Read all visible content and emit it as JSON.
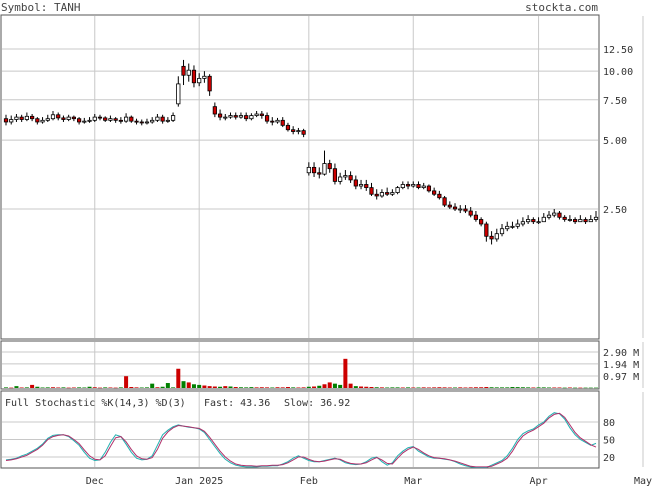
{
  "header": {
    "symbol_label": "Symbol: TANH",
    "site_label": "stockta.com"
  },
  "colors": {
    "up_candle": "#ffffff",
    "down_candle": "#cc0000",
    "volume_up": "#008000",
    "volume_down": "#cc0000",
    "fast_line": "#20b0b0",
    "slow_line": "#b0306a",
    "grid": "#c8c8c8"
  },
  "stochastic": {
    "title": "Full Stochastic %K(14,3) %D(3)",
    "fast_label": "Fast: 43.36",
    "slow_label": "Slow: 36.92"
  },
  "chart_data": [
    {
      "type": "candlestick",
      "title": "",
      "y_scale": "log",
      "y_ticks": [
        "12.50",
        "10.00",
        "7.50",
        "5.00",
        "2.50"
      ],
      "y_tick_values": [
        12.5,
        10.0,
        7.5,
        5.0,
        2.5
      ],
      "x_ticks": [
        "Dec",
        "Jan 2025",
        "Feb",
        "Mar",
        "Apr",
        "May"
      ],
      "x_tick_index": [
        17,
        37,
        58,
        78,
        102,
        122
      ],
      "grid": true,
      "close": [
        6.0,
        6.15,
        6.3,
        6.15,
        6.35,
        6.2,
        6.0,
        6.1,
        6.2,
        6.45,
        6.25,
        6.15,
        6.3,
        6.2,
        6.0,
        6.05,
        6.1,
        6.3,
        6.25,
        6.1,
        6.2,
        6.1,
        6.05,
        6.3,
        6.05,
        6.0,
        5.95,
        6.0,
        6.1,
        6.3,
        6.05,
        6.1,
        6.4,
        8.8,
        9.6,
        10.1,
        8.9,
        9.3,
        9.5,
        8.2,
        6.5,
        6.3,
        6.3,
        6.4,
        6.3,
        6.4,
        6.2,
        6.4,
        6.5,
        6.4,
        6.05,
        6.0,
        6.1,
        5.8,
        5.55,
        5.45,
        5.5,
        5.3,
        3.8,
        3.6,
        3.55,
        3.95,
        3.75,
        3.3,
        3.45,
        3.5,
        3.35,
        3.15,
        3.2,
        3.1,
        2.9,
        2.85,
        2.95,
        2.9,
        2.95,
        3.1,
        3.2,
        3.15,
        3.2,
        3.1,
        3.15,
        3.0,
        2.9,
        2.8,
        2.6,
        2.55,
        2.5,
        2.5,
        2.45,
        2.35,
        2.25,
        2.15,
        1.9,
        1.85,
        1.95,
        2.05,
        2.1,
        2.1,
        2.15,
        2.2,
        2.25,
        2.2,
        2.2,
        2.3,
        2.35,
        2.4,
        2.3,
        2.25,
        2.25,
        2.2,
        2.25,
        2.2,
        2.25,
        2.3
      ],
      "open": [
        6.2,
        6.0,
        6.15,
        6.3,
        6.15,
        6.35,
        6.2,
        6.0,
        6.1,
        6.2,
        6.45,
        6.25,
        6.15,
        6.3,
        6.2,
        6.0,
        6.05,
        6.1,
        6.3,
        6.25,
        6.1,
        6.2,
        6.1,
        6.05,
        6.3,
        6.05,
        6.0,
        5.95,
        6.0,
        6.1,
        6.3,
        6.05,
        6.1,
        7.2,
        10.5,
        9.6,
        10.1,
        8.9,
        9.3,
        9.5,
        7.0,
        6.5,
        6.3,
        6.3,
        6.4,
        6.3,
        6.4,
        6.2,
        6.4,
        6.5,
        6.4,
        6.05,
        6.0,
        6.1,
        5.8,
        5.55,
        5.45,
        5.5,
        3.6,
        3.8,
        3.6,
        3.55,
        3.95,
        3.75,
        3.3,
        3.45,
        3.5,
        3.35,
        3.15,
        3.2,
        3.1,
        2.9,
        2.85,
        2.95,
        2.9,
        2.95,
        3.1,
        3.2,
        3.15,
        3.2,
        3.1,
        3.15,
        3.0,
        2.9,
        2.8,
        2.6,
        2.55,
        2.5,
        2.5,
        2.45,
        2.35,
        2.25,
        2.15,
        1.9,
        1.85,
        1.95,
        2.05,
        2.1,
        2.1,
        2.15,
        2.2,
        2.25,
        2.2,
        2.2,
        2.3,
        2.35,
        2.4,
        2.3,
        2.25,
        2.25,
        2.2,
        2.25,
        2.2,
        2.25
      ],
      "high": [
        6.45,
        6.4,
        6.5,
        6.45,
        6.6,
        6.5,
        6.3,
        6.3,
        6.45,
        6.7,
        6.6,
        6.4,
        6.45,
        6.4,
        6.3,
        6.25,
        6.3,
        6.5,
        6.45,
        6.35,
        6.4,
        6.3,
        6.3,
        6.55,
        6.4,
        6.2,
        6.15,
        6.2,
        6.3,
        6.5,
        6.45,
        6.3,
        6.6,
        9.5,
        11.2,
        10.8,
        10.6,
        9.8,
        10.0,
        9.7,
        7.3,
        6.8,
        6.5,
        6.6,
        6.6,
        6.6,
        6.6,
        6.55,
        6.7,
        6.7,
        6.6,
        6.3,
        6.25,
        6.3,
        5.95,
        5.75,
        5.65,
        5.6,
        4.0,
        4.0,
        3.8,
        4.5,
        4.1,
        3.95,
        3.6,
        3.7,
        3.65,
        3.5,
        3.35,
        3.35,
        3.25,
        3.05,
        3.05,
        3.1,
        3.05,
        3.15,
        3.3,
        3.3,
        3.3,
        3.3,
        3.25,
        3.2,
        3.1,
        3.0,
        2.85,
        2.7,
        2.65,
        2.6,
        2.6,
        2.55,
        2.45,
        2.3,
        2.2,
        2.0,
        2.05,
        2.15,
        2.2,
        2.2,
        2.25,
        2.3,
        2.35,
        2.3,
        2.3,
        2.4,
        2.45,
        2.5,
        2.45,
        2.35,
        2.35,
        2.3,
        2.35,
        2.3,
        2.35,
        2.45
      ],
      "low": [
        5.8,
        5.85,
        6.0,
        6.0,
        6.05,
        6.05,
        5.85,
        5.9,
        6.0,
        6.1,
        6.1,
        6.0,
        6.05,
        6.05,
        5.85,
        5.9,
        5.95,
        6.0,
        6.1,
        6.0,
        6.0,
        5.95,
        5.9,
        5.95,
        5.95,
        5.85,
        5.8,
        5.85,
        5.9,
        6.0,
        5.9,
        5.95,
        6.0,
        7.0,
        8.7,
        9.0,
        8.5,
        8.6,
        8.9,
        7.8,
        6.3,
        6.1,
        6.1,
        6.2,
        6.15,
        6.2,
        6.05,
        6.1,
        6.3,
        6.2,
        5.9,
        5.8,
        5.9,
        5.7,
        5.45,
        5.3,
        5.3,
        5.15,
        3.5,
        3.45,
        3.4,
        3.5,
        3.6,
        3.2,
        3.2,
        3.35,
        3.25,
        3.05,
        3.05,
        3.0,
        2.85,
        2.75,
        2.8,
        2.85,
        2.85,
        2.9,
        3.05,
        3.05,
        3.1,
        3.05,
        3.05,
        2.95,
        2.85,
        2.75,
        2.55,
        2.5,
        2.45,
        2.4,
        2.4,
        2.3,
        2.2,
        2.1,
        1.8,
        1.75,
        1.8,
        1.9,
        2.0,
        2.05,
        2.05,
        2.1,
        2.15,
        2.15,
        2.15,
        2.2,
        2.25,
        2.3,
        2.25,
        2.2,
        2.2,
        2.15,
        2.2,
        2.15,
        2.2,
        2.2
      ]
    },
    {
      "type": "bar",
      "title": "",
      "y_ticks": [
        "2.90 M",
        "1.94 M",
        "0.97 M"
      ],
      "y_tick_values": [
        2.9,
        1.94,
        0.97
      ],
      "y_unit": "M",
      "values": [
        0.05,
        0.03,
        0.15,
        0.04,
        0.05,
        0.25,
        0.1,
        0.04,
        0.05,
        0.06,
        0.04,
        0.05,
        0.03,
        0.04,
        0.05,
        0.04,
        0.1,
        0.06,
        0.03,
        0.05,
        0.04,
        0.03,
        0.05,
        0.95,
        0.08,
        0.05,
        0.04,
        0.05,
        0.35,
        0.06,
        0.1,
        0.4,
        0.05,
        1.55,
        0.55,
        0.45,
        0.3,
        0.25,
        0.2,
        0.15,
        0.12,
        0.1,
        0.15,
        0.12,
        0.08,
        0.06,
        0.05,
        0.07,
        0.05,
        0.06,
        0.05,
        0.04,
        0.06,
        0.05,
        0.08,
        0.05,
        0.04,
        0.05,
        0.1,
        0.12,
        0.18,
        0.3,
        0.45,
        0.35,
        0.25,
        2.35,
        0.35,
        0.15,
        0.12,
        0.1,
        0.08,
        0.06,
        0.05,
        0.04,
        0.05,
        0.05,
        0.04,
        0.05,
        0.04,
        0.04,
        0.05,
        0.04,
        0.05,
        0.06,
        0.05,
        0.04,
        0.04,
        0.05,
        0.04,
        0.05,
        0.06,
        0.06,
        0.08,
        0.06,
        0.05,
        0.05,
        0.05,
        0.08,
        0.07,
        0.06,
        0.05,
        0.04,
        0.05,
        0.05,
        0.04,
        0.04,
        0.04,
        0.03,
        0.04,
        0.03,
        0.03,
        0.03,
        0.03,
        0.03
      ],
      "up": [
        true,
        false,
        true,
        false,
        true,
        false,
        true,
        true,
        true,
        false,
        false,
        true,
        false,
        false,
        true,
        true,
        true,
        false,
        false,
        true,
        false,
        false,
        true,
        false,
        false,
        false,
        true,
        true,
        true,
        false,
        true,
        true,
        true,
        false,
        true,
        false,
        true,
        true,
        false,
        false,
        false,
        true,
        false,
        true,
        false,
        true,
        true,
        true,
        false,
        false,
        false,
        true,
        false,
        false,
        false,
        true,
        false,
        false,
        true,
        false,
        true,
        false,
        false,
        true,
        true,
        false,
        false,
        true,
        false,
        false,
        false,
        true,
        false,
        true,
        true,
        true,
        false,
        true,
        false,
        true,
        false,
        false,
        false,
        false,
        false,
        false,
        true,
        false,
        false,
        false,
        false,
        false,
        false,
        true,
        true,
        true,
        true,
        true,
        true,
        true,
        true,
        false,
        true,
        true,
        true,
        false,
        false,
        true,
        false,
        true,
        false,
        true,
        true,
        true
      ]
    },
    {
      "type": "line",
      "title": "Full Stochastic %K(14,3) %D(3)",
      "y_ticks": [
        "80",
        "50",
        "20"
      ],
      "y_tick_values": [
        80,
        50,
        20
      ],
      "ylim": [
        0,
        100
      ],
      "series": [
        {
          "name": "Fast",
          "values": [
            15,
            16,
            18,
            22,
            25,
            30,
            35,
            42,
            52,
            57,
            58,
            58,
            55,
            48,
            40,
            28,
            18,
            14,
            15,
            28,
            45,
            58,
            55,
            42,
            28,
            18,
            15,
            16,
            22,
            40,
            58,
            66,
            72,
            75,
            73,
            71,
            70,
            68,
            62,
            50,
            38,
            26,
            16,
            10,
            6,
            4,
            3,
            3,
            3,
            4,
            4,
            5,
            5,
            8,
            12,
            18,
            22,
            18,
            14,
            12,
            12,
            14,
            16,
            18,
            15,
            10,
            8,
            7,
            8,
            12,
            18,
            20,
            12,
            6,
            10,
            22,
            30,
            36,
            38,
            30,
            25,
            20,
            18,
            18,
            16,
            15,
            12,
            8,
            5,
            3,
            2,
            2,
            2,
            6,
            10,
            14,
            22,
            35,
            50,
            60,
            65,
            68,
            75,
            80,
            90,
            96,
            94,
            85,
            70,
            58,
            50,
            45,
            40,
            43.36
          ]
        },
        {
          "name": "Slow",
          "values": [
            14,
            15,
            17,
            20,
            23,
            28,
            33,
            40,
            50,
            55,
            57,
            58,
            56,
            50,
            43,
            32,
            22,
            16,
            15,
            22,
            38,
            53,
            55,
            46,
            33,
            22,
            17,
            16,
            19,
            33,
            52,
            63,
            70,
            74,
            73,
            72,
            70,
            69,
            64,
            54,
            42,
            30,
            20,
            13,
            8,
            6,
            5,
            5,
            4,
            5,
            5,
            6,
            6,
            7,
            10,
            15,
            20,
            20,
            16,
            13,
            12,
            13,
            15,
            17,
            16,
            12,
            9,
            8,
            8,
            10,
            15,
            19,
            15,
            9,
            8,
            18,
            27,
            33,
            37,
            33,
            27,
            22,
            19,
            18,
            17,
            15,
            13,
            10,
            7,
            4,
            3,
            3,
            3,
            4,
            8,
            12,
            18,
            30,
            45,
            56,
            62,
            66,
            72,
            78,
            87,
            93,
            95,
            88,
            75,
            62,
            53,
            47,
            41,
            36.92
          ]
        }
      ]
    }
  ]
}
